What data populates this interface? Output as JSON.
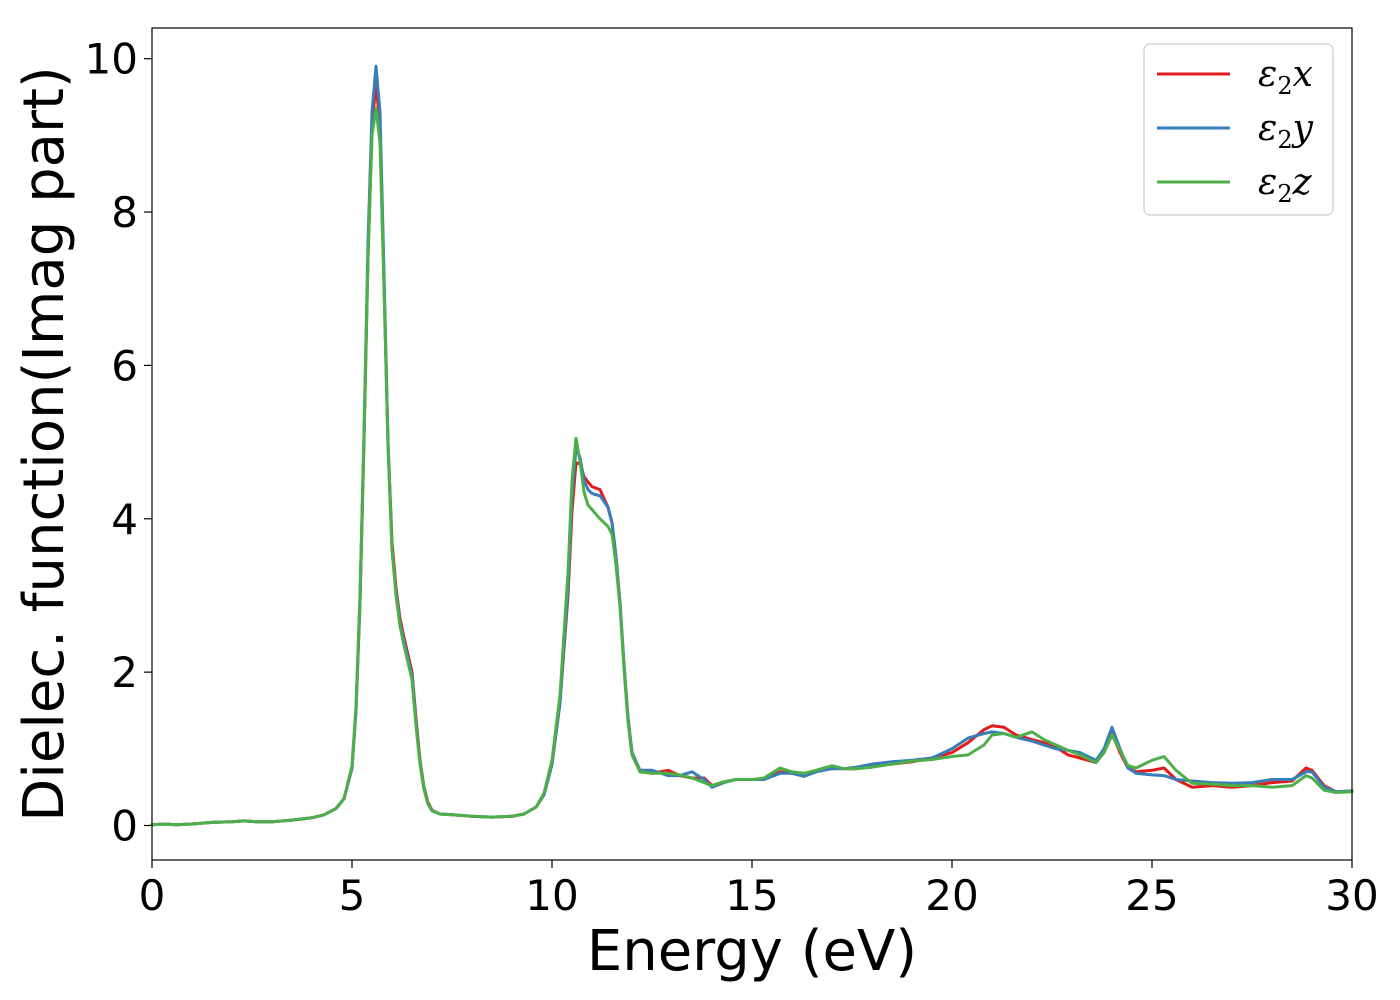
{
  "chart_data": {
    "type": "line",
    "title": "",
    "xlabel": "Energy (eV)",
    "ylabel": "Dielec. function(Imag part)",
    "xlim": [
      0,
      30
    ],
    "ylim": [
      -0.45,
      10.4
    ],
    "xticks": [
      0,
      5,
      10,
      15,
      20,
      25,
      30
    ],
    "yticks": [
      0,
      2,
      4,
      6,
      8,
      10
    ],
    "grid": false,
    "legend_position": "top-right",
    "series": [
      {
        "name": "ε₂x",
        "legend": {
          "base": "ε",
          "sub": "2",
          "axis": "x"
        },
        "color": "#e41a1c",
        "x": [
          0,
          0.3,
          0.6,
          1,
          1.5,
          2,
          2.3,
          2.6,
          3,
          3.5,
          4,
          4.3,
          4.6,
          4.8,
          5,
          5.1,
          5.2,
          5.3,
          5.4,
          5.5,
          5.6,
          5.7,
          5.8,
          5.9,
          6,
          6.1,
          6.2,
          6.3,
          6.5,
          6.6,
          6.7,
          6.8,
          6.9,
          7,
          7.2,
          7.5,
          8,
          8.5,
          9,
          9.3,
          9.6,
          9.8,
          10,
          10.2,
          10.4,
          10.5,
          10.6,
          10.7,
          10.8,
          10.9,
          11,
          11.2,
          11.4,
          11.5,
          11.6,
          11.7,
          11.8,
          11.9,
          12,
          12.2,
          12.5,
          12.9,
          13.2,
          13.5,
          13.8,
          14,
          14.3,
          14.6,
          15,
          15.3,
          15.7,
          16,
          16.3,
          16.6,
          17,
          17.3,
          17.6,
          18,
          18.5,
          19,
          19.5,
          20,
          20.4,
          20.8,
          21,
          21.3,
          21.6,
          22,
          22.3,
          22.6,
          22.9,
          23.2,
          23.6,
          23.8,
          24,
          24.2,
          24.4,
          24.6,
          25,
          25.3,
          25.6,
          26,
          26.5,
          27,
          27.5,
          28,
          28.5,
          28.85,
          29,
          29.3,
          29.6,
          30
        ],
        "y": [
          0.01,
          0.02,
          0.01,
          0.02,
          0.04,
          0.05,
          0.06,
          0.05,
          0.05,
          0.07,
          0.1,
          0.14,
          0.22,
          0.35,
          0.75,
          1.5,
          2.9,
          5.0,
          7.4,
          9.1,
          9.7,
          9.1,
          7.1,
          5.0,
          3.7,
          3.1,
          2.7,
          2.45,
          2.0,
          1.4,
          0.85,
          0.5,
          0.3,
          0.2,
          0.15,
          0.14,
          0.12,
          0.11,
          0.12,
          0.15,
          0.24,
          0.4,
          0.8,
          1.6,
          3.0,
          4.1,
          4.73,
          4.72,
          4.55,
          4.48,
          4.42,
          4.38,
          4.15,
          3.95,
          3.5,
          2.9,
          2.1,
          1.4,
          0.95,
          0.7,
          0.68,
          0.72,
          0.65,
          0.62,
          0.62,
          0.52,
          0.57,
          0.6,
          0.6,
          0.6,
          0.7,
          0.68,
          0.65,
          0.7,
          0.76,
          0.74,
          0.74,
          0.78,
          0.8,
          0.83,
          0.88,
          0.95,
          1.08,
          1.25,
          1.3,
          1.28,
          1.18,
          1.12,
          1.08,
          1.02,
          0.92,
          0.88,
          0.82,
          0.95,
          1.2,
          0.95,
          0.75,
          0.7,
          0.72,
          0.75,
          0.6,
          0.5,
          0.52,
          0.5,
          0.52,
          0.56,
          0.58,
          0.75,
          0.72,
          0.52,
          0.44,
          0.45
        ]
      },
      {
        "name": "ε₂y",
        "legend": {
          "base": "ε",
          "sub": "2",
          "axis": "y"
        },
        "color": "#377eb8",
        "x": [
          0,
          0.3,
          0.6,
          1,
          1.5,
          2,
          2.3,
          2.6,
          3,
          3.5,
          4,
          4.3,
          4.6,
          4.8,
          5,
          5.1,
          5.2,
          5.3,
          5.4,
          5.5,
          5.6,
          5.7,
          5.8,
          5.9,
          6,
          6.1,
          6.2,
          6.3,
          6.5,
          6.6,
          6.7,
          6.8,
          6.9,
          7,
          7.2,
          7.5,
          8,
          8.5,
          9,
          9.3,
          9.6,
          9.8,
          10,
          10.2,
          10.4,
          10.5,
          10.6,
          10.7,
          10.8,
          10.9,
          11,
          11.2,
          11.4,
          11.5,
          11.6,
          11.7,
          11.8,
          11.9,
          12,
          12.2,
          12.5,
          12.9,
          13.2,
          13.5,
          13.8,
          14,
          14.3,
          14.6,
          15,
          15.3,
          15.7,
          16,
          16.3,
          16.6,
          17,
          17.3,
          17.6,
          18,
          18.5,
          19,
          19.5,
          20,
          20.4,
          20.8,
          21,
          21.3,
          21.6,
          22,
          22.3,
          22.6,
          22.9,
          23.2,
          23.6,
          23.8,
          24,
          24.2,
          24.4,
          24.6,
          25,
          25.3,
          25.6,
          26,
          26.5,
          27,
          27.5,
          28,
          28.5,
          28.85,
          29,
          29.3,
          29.6,
          30
        ],
        "y": [
          0.01,
          0.02,
          0.01,
          0.02,
          0.04,
          0.05,
          0.06,
          0.05,
          0.05,
          0.07,
          0.1,
          0.14,
          0.22,
          0.35,
          0.75,
          1.5,
          2.95,
          5.1,
          7.6,
          9.3,
          9.9,
          9.3,
          7.2,
          5.0,
          3.6,
          3.05,
          2.65,
          2.4,
          1.95,
          1.35,
          0.82,
          0.48,
          0.28,
          0.19,
          0.15,
          0.14,
          0.12,
          0.11,
          0.12,
          0.15,
          0.24,
          0.4,
          0.8,
          1.6,
          3.1,
          4.3,
          4.93,
          4.8,
          4.5,
          4.38,
          4.33,
          4.3,
          4.15,
          3.95,
          3.5,
          2.9,
          2.1,
          1.4,
          0.95,
          0.72,
          0.72,
          0.65,
          0.65,
          0.7,
          0.6,
          0.5,
          0.56,
          0.6,
          0.6,
          0.6,
          0.68,
          0.68,
          0.64,
          0.7,
          0.74,
          0.74,
          0.76,
          0.8,
          0.83,
          0.85,
          0.88,
          1.0,
          1.14,
          1.2,
          1.22,
          1.2,
          1.15,
          1.1,
          1.05,
          1.0,
          0.98,
          0.95,
          0.85,
          1.0,
          1.28,
          1.0,
          0.75,
          0.68,
          0.66,
          0.65,
          0.6,
          0.58,
          0.56,
          0.55,
          0.56,
          0.6,
          0.6,
          0.7,
          0.7,
          0.5,
          0.44,
          0.45
        ]
      },
      {
        "name": "ε₂z",
        "legend": {
          "base": "ε",
          "sub": "2",
          "axis": "z"
        },
        "color": "#4daf4a",
        "x": [
          0,
          0.3,
          0.6,
          1,
          1.5,
          2,
          2.3,
          2.6,
          3,
          3.5,
          4,
          4.3,
          4.6,
          4.8,
          5,
          5.1,
          5.2,
          5.3,
          5.4,
          5.5,
          5.6,
          5.7,
          5.8,
          5.9,
          6,
          6.1,
          6.2,
          6.3,
          6.5,
          6.6,
          6.7,
          6.8,
          6.9,
          7,
          7.2,
          7.5,
          8,
          8.5,
          9,
          9.3,
          9.6,
          9.8,
          10,
          10.2,
          10.4,
          10.5,
          10.6,
          10.7,
          10.8,
          10.9,
          11,
          11.2,
          11.4,
          11.5,
          11.6,
          11.7,
          11.8,
          11.9,
          12,
          12.2,
          12.5,
          12.9,
          13.2,
          13.5,
          13.8,
          14,
          14.3,
          14.6,
          15,
          15.3,
          15.7,
          16,
          16.3,
          16.6,
          17,
          17.3,
          17.6,
          18,
          18.5,
          19,
          19.5,
          20,
          20.4,
          20.8,
          21,
          21.3,
          21.6,
          22,
          22.3,
          22.6,
          22.9,
          23.2,
          23.6,
          23.8,
          24,
          24.2,
          24.4,
          24.6,
          25,
          25.3,
          25.6,
          26,
          26.5,
          27,
          27.5,
          28,
          28.5,
          28.85,
          29,
          29.3,
          29.6,
          30
        ],
        "y": [
          0.01,
          0.02,
          0.01,
          0.02,
          0.04,
          0.05,
          0.06,
          0.05,
          0.05,
          0.07,
          0.1,
          0.14,
          0.22,
          0.35,
          0.78,
          1.55,
          3.0,
          5.1,
          7.4,
          9.0,
          9.35,
          8.9,
          7.0,
          4.95,
          3.6,
          3.0,
          2.6,
          2.35,
          1.9,
          1.3,
          0.8,
          0.47,
          0.28,
          0.19,
          0.15,
          0.14,
          0.12,
          0.11,
          0.12,
          0.15,
          0.24,
          0.42,
          0.85,
          1.7,
          3.3,
          4.5,
          5.05,
          4.75,
          4.35,
          4.18,
          4.12,
          4.0,
          3.9,
          3.8,
          3.4,
          2.85,
          2.05,
          1.35,
          0.92,
          0.7,
          0.68,
          0.68,
          0.66,
          0.62,
          0.56,
          0.52,
          0.57,
          0.6,
          0.6,
          0.62,
          0.75,
          0.7,
          0.68,
          0.72,
          0.78,
          0.74,
          0.74,
          0.76,
          0.8,
          0.84,
          0.86,
          0.9,
          0.92,
          1.05,
          1.18,
          1.2,
          1.15,
          1.22,
          1.12,
          1.05,
          0.98,
          0.92,
          0.82,
          0.95,
          1.18,
          0.98,
          0.78,
          0.75,
          0.85,
          0.9,
          0.72,
          0.55,
          0.54,
          0.52,
          0.52,
          0.5,
          0.52,
          0.65,
          0.62,
          0.46,
          0.43,
          0.44
        ]
      }
    ]
  }
}
